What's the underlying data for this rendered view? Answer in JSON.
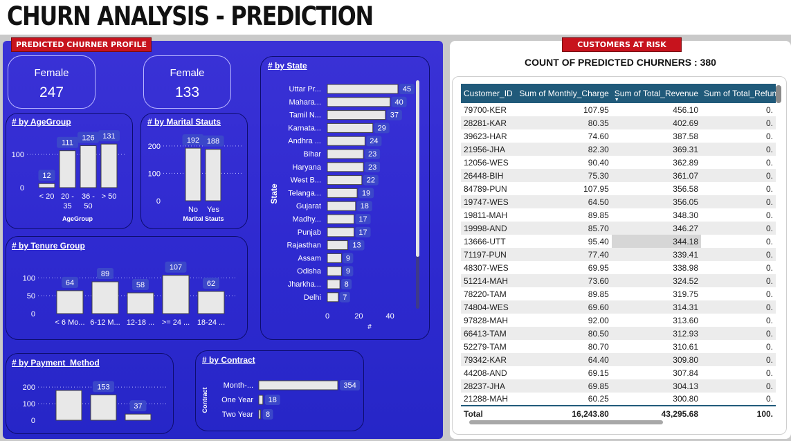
{
  "title": "CHURN ANALYSIS - PREDICTION",
  "left_tag": "PREDICTED CHURNER PROFILE",
  "right_tag": "CUSTOMERS AT RISK",
  "kpis": [
    {
      "label": "Female",
      "value": "247"
    },
    {
      "label": "Female",
      "value": "133"
    }
  ],
  "count_title": "COUNT OF PREDICTED CHURNERS : 380",
  "colors": {
    "panel": "#2f2ad0",
    "bar": "#e8e8e8",
    "tag": "#c7131d",
    "table_header": "#205a7a"
  },
  "chart_data": [
    {
      "id": "age",
      "type": "bar",
      "title": "# by AgeGroup",
      "xlabel": "AgeGroup",
      "categories": [
        "< 20",
        "20 - 35",
        "36 - 50",
        "> 50"
      ],
      "category_lines": [
        [
          "< 20"
        ],
        [
          "20 -",
          "35"
        ],
        [
          "36 -",
          "50"
        ],
        [
          "> 50"
        ]
      ],
      "values": [
        12,
        111,
        126,
        131
      ],
      "yticks": [
        "100",
        "0"
      ],
      "ylim": [
        0,
        150
      ]
    },
    {
      "id": "marital",
      "type": "bar",
      "title": "# by Marital Stauts",
      "xlabel": "Marital Stauts",
      "categories": [
        "No",
        "Yes"
      ],
      "values": [
        192,
        188
      ],
      "yticks": [
        "200",
        "100",
        "0"
      ],
      "ylim": [
        0,
        230
      ]
    },
    {
      "id": "tenure",
      "type": "bar",
      "title": "# by Tenure Group",
      "categories": [
        "< 6 Mo...",
        "6-12 M...",
        "12-18 ...",
        ">= 24 ...",
        "18-24 ..."
      ],
      "values": [
        64,
        89,
        58,
        107,
        62
      ],
      "yticks": [
        "100",
        "50",
        "0"
      ],
      "ylim": [
        0,
        120
      ]
    },
    {
      "id": "payment",
      "type": "bar",
      "title": "# by Payment_Method",
      "values": [
        180,
        153,
        37
      ],
      "labels": [
        "",
        "153",
        "37"
      ],
      "yticks": [
        "200",
        "100",
        "0"
      ],
      "ylim": [
        0,
        230
      ]
    },
    {
      "id": "contract",
      "type": "bar",
      "orientation": "horizontal",
      "title": "# by Contract",
      "ylabel": "Contract",
      "categories": [
        "Month-...",
        "One Year",
        "Two Year"
      ],
      "values": [
        354,
        18,
        8
      ],
      "xlim": [
        0,
        360
      ]
    },
    {
      "id": "state",
      "type": "bar",
      "orientation": "horizontal",
      "title": "# by State",
      "ylabel": "State",
      "xlabel": "#",
      "categories": [
        "Uttar Pr...",
        "Mahara...",
        "Tamil N...",
        "Karnata...",
        "Andhra ...",
        "Bihar",
        "Haryana",
        "West B...",
        "Telanga...",
        "Gujarat",
        "Madhy...",
        "Punjab",
        "Rajasthan",
        "Assam",
        "Odisha",
        "Jharkha...",
        "Delhi"
      ],
      "values": [
        45,
        40,
        37,
        29,
        24,
        23,
        23,
        22,
        19,
        18,
        17,
        17,
        13,
        9,
        9,
        8,
        7
      ],
      "xticks": [
        0,
        20,
        40
      ],
      "xlim": [
        0,
        45
      ]
    }
  ],
  "table": {
    "columns": [
      "Customer_ID",
      "Sum of Monthly_Charge",
      "Sum of Total_Revenue",
      "Sum of Total_Refun"
    ],
    "rows": [
      [
        "79700-KER",
        "107.95",
        "456.10",
        "0."
      ],
      [
        "28281-KAR",
        "80.35",
        "402.69",
        "0."
      ],
      [
        "39623-HAR",
        "74.60",
        "387.58",
        "0."
      ],
      [
        "21956-JHA",
        "82.30",
        "369.31",
        "0."
      ],
      [
        "12056-WES",
        "90.40",
        "362.89",
        "0."
      ],
      [
        "26448-BIH",
        "75.30",
        "361.07",
        "0."
      ],
      [
        "84789-PUN",
        "107.95",
        "356.58",
        "0."
      ],
      [
        "19747-WES",
        "64.50",
        "356.05",
        "0."
      ],
      [
        "19811-MAH",
        "89.85",
        "348.30",
        "0."
      ],
      [
        "19998-AND",
        "85.70",
        "346.27",
        "0."
      ],
      [
        "13666-UTT",
        "95.40",
        "344.18",
        "0."
      ],
      [
        "71197-PUN",
        "77.40",
        "339.41",
        "0."
      ],
      [
        "48307-WES",
        "69.95",
        "338.98",
        "0."
      ],
      [
        "51214-MAH",
        "73.60",
        "324.52",
        "0."
      ],
      [
        "78220-TAM",
        "89.85",
        "319.75",
        "0."
      ],
      [
        "74804-WES",
        "69.60",
        "314.31",
        "0."
      ],
      [
        "97828-MAH",
        "92.00",
        "313.60",
        "0."
      ],
      [
        "66413-TAM",
        "80.50",
        "312.93",
        "0."
      ],
      [
        "52279-TAM",
        "80.70",
        "310.61",
        "0."
      ],
      [
        "79342-KAR",
        "64.40",
        "309.80",
        "0."
      ],
      [
        "44208-AND",
        "69.15",
        "307.84",
        "0."
      ],
      [
        "28237-JHA",
        "69.85",
        "304.13",
        "0."
      ],
      [
        "21288-MAH",
        "60.25",
        "300.80",
        "0."
      ]
    ],
    "total": [
      "Total",
      "16,243.80",
      "43,295.68",
      "100."
    ]
  }
}
